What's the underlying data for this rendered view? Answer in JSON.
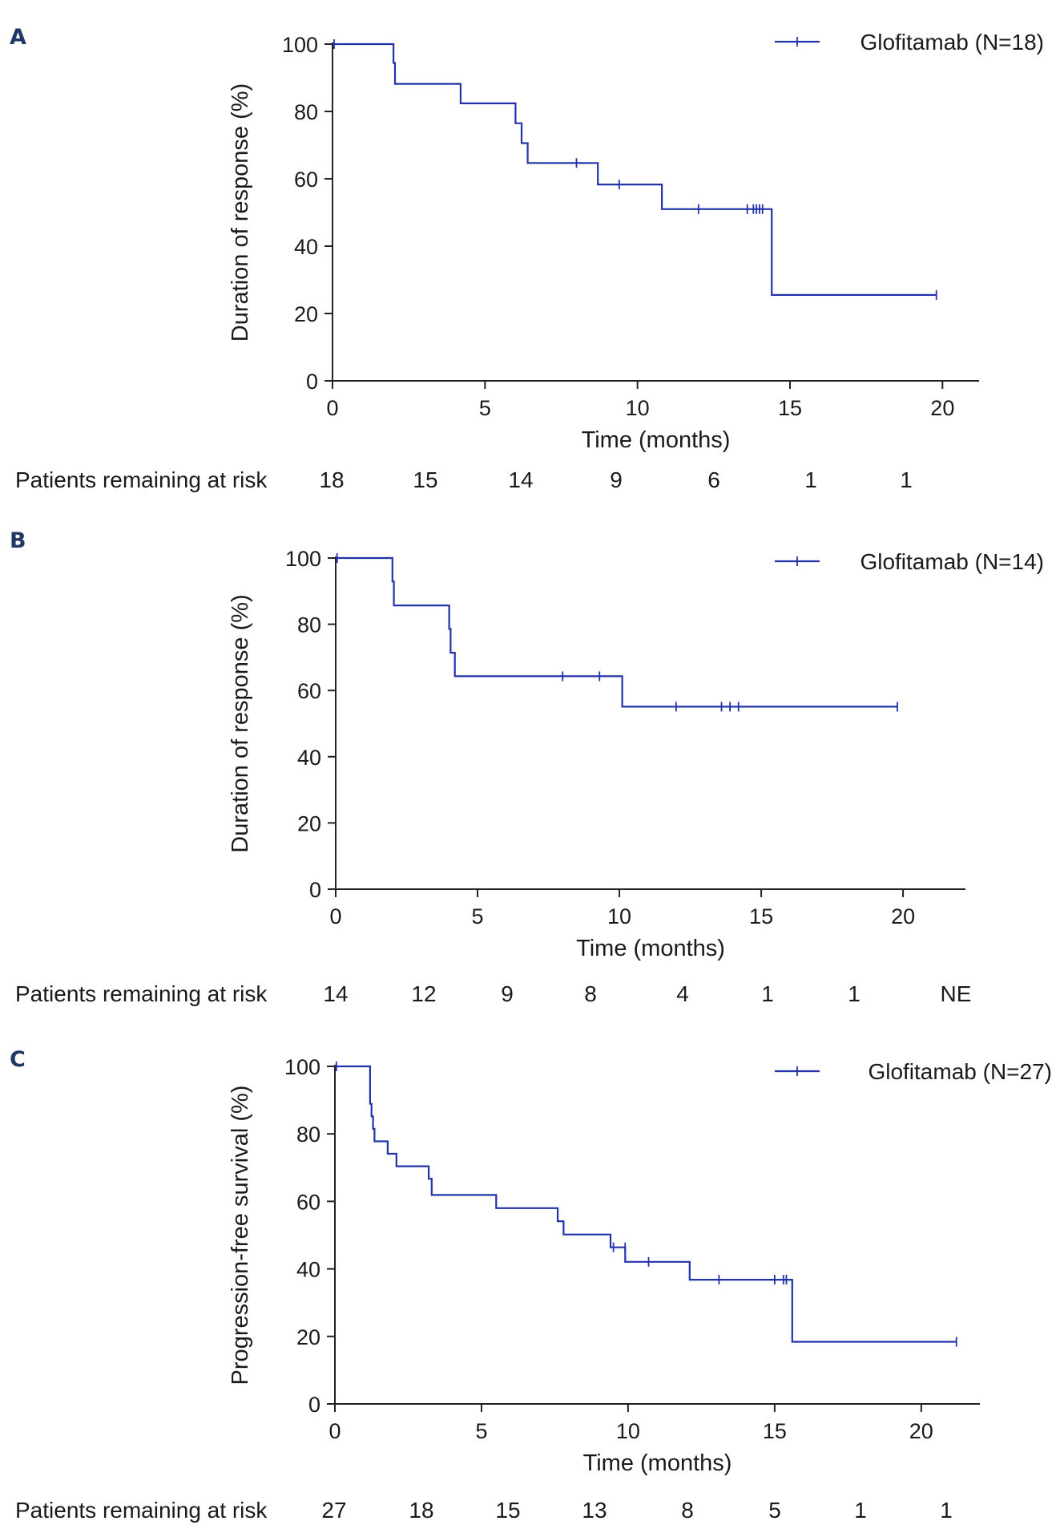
{
  "figure": {
    "risk_label": "Patients remaining at risk",
    "curve_color": "#2233aa"
  },
  "chart_data": [
    {
      "panel": "A",
      "type": "line",
      "subtype": "kaplan-meier",
      "title": "",
      "xlabel": "Time (months)",
      "ylabel": "Duration of response (%)",
      "xlim": [
        0,
        21.2
      ],
      "ylim": [
        0,
        100
      ],
      "xticks": [
        0,
        5,
        10,
        15,
        20
      ],
      "yticks": [
        0,
        20,
        40,
        60,
        80,
        100
      ],
      "legend": "Glofitamab (N=18)",
      "legend_position": "top-right",
      "grid": false,
      "series": [
        {
          "name": "Glofitamab (N=18)",
          "steps": [
            [
              0,
              100
            ],
            [
              2.0,
              94.4
            ],
            [
              2.05,
              88.2
            ],
            [
              4.2,
              82.4
            ],
            [
              6.0,
              76.5
            ],
            [
              6.2,
              70.6
            ],
            [
              6.4,
              64.7
            ],
            [
              8.7,
              58.3
            ],
            [
              10.8,
              51.0
            ],
            [
              14.4,
              25.5
            ],
            [
              19.8,
              25.5
            ]
          ],
          "censored": [
            [
              0.05,
              100
            ],
            [
              8.0,
              64.7
            ],
            [
              9.4,
              58.3
            ],
            [
              12.0,
              51.0
            ],
            [
              13.6,
              51.0
            ],
            [
              13.8,
              51.0
            ],
            [
              13.9,
              51.0
            ],
            [
              14.0,
              51.0
            ],
            [
              14.1,
              51.0
            ],
            [
              19.8,
              25.5
            ]
          ]
        }
      ],
      "risk_table": {
        "values": [
          "18",
          "15",
          "14",
          "9",
          "6",
          "1",
          "1"
        ]
      }
    },
    {
      "panel": "B",
      "type": "line",
      "subtype": "kaplan-meier",
      "title": "",
      "xlabel": "Time (months)",
      "ylabel": "Duration of response (%)",
      "xlim": [
        0,
        22.2
      ],
      "ylim": [
        0,
        100
      ],
      "xticks": [
        0,
        5,
        10,
        15,
        20
      ],
      "yticks": [
        0,
        20,
        40,
        60,
        80,
        100
      ],
      "legend": "Glofitamab (N=14)",
      "legend_position": "top-right",
      "grid": false,
      "series": [
        {
          "name": "Glofitamab (N=14)",
          "steps": [
            [
              0,
              100
            ],
            [
              2.0,
              92.9
            ],
            [
              2.05,
              85.7
            ],
            [
              4.0,
              78.6
            ],
            [
              4.05,
              71.4
            ],
            [
              4.2,
              64.3
            ],
            [
              10.1,
              55.1
            ],
            [
              19.8,
              55.1
            ]
          ],
          "censored": [
            [
              0.05,
              100
            ],
            [
              8.0,
              64.3
            ],
            [
              9.3,
              64.3
            ],
            [
              12.0,
              55.1
            ],
            [
              13.6,
              55.1
            ],
            [
              13.9,
              55.1
            ],
            [
              14.2,
              55.1
            ],
            [
              19.8,
              55.1
            ]
          ]
        }
      ],
      "risk_table": {
        "values": [
          "14",
          "12",
          "9",
          "8",
          "4",
          "1",
          "1",
          "NE"
        ]
      }
    },
    {
      "panel": "C",
      "type": "line",
      "subtype": "kaplan-meier",
      "title": "",
      "xlabel": "Time (months)",
      "ylabel": "Progression-free survival (%)",
      "xlim": [
        0,
        22.0
      ],
      "ylim": [
        0,
        100
      ],
      "xticks": [
        0,
        5,
        10,
        15,
        20
      ],
      "yticks": [
        0,
        20,
        40,
        60,
        80,
        100
      ],
      "legend": "Glofitamab (N=27)",
      "legend_position": "top-right",
      "grid": false,
      "series": [
        {
          "name": "Glofitamab (N=27)",
          "steps": [
            [
              0,
              100
            ],
            [
              1.2,
              88.9
            ],
            [
              1.25,
              85.2
            ],
            [
              1.3,
              81.5
            ],
            [
              1.35,
              77.8
            ],
            [
              1.8,
              74.1
            ],
            [
              2.1,
              70.4
            ],
            [
              3.2,
              66.7
            ],
            [
              3.3,
              61.9
            ],
            [
              5.5,
              58.0
            ],
            [
              7.6,
              54.1
            ],
            [
              7.8,
              50.2
            ],
            [
              9.4,
              46.4
            ],
            [
              9.9,
              42.1
            ],
            [
              12.1,
              36.8
            ],
            [
              15.6,
              18.4
            ],
            [
              21.2,
              18.4
            ]
          ],
          "censored": [
            [
              0.05,
              100
            ],
            [
              9.5,
              46.4
            ],
            [
              9.9,
              46.4
            ],
            [
              10.7,
              42.1
            ],
            [
              13.1,
              36.8
            ],
            [
              15.0,
              36.8
            ],
            [
              15.3,
              36.8
            ],
            [
              15.4,
              36.8
            ],
            [
              21.2,
              18.4
            ]
          ]
        }
      ],
      "risk_table": {
        "values": [
          "27",
          "18",
          "15",
          "13",
          "8",
          "5",
          "1",
          "1"
        ]
      }
    }
  ]
}
